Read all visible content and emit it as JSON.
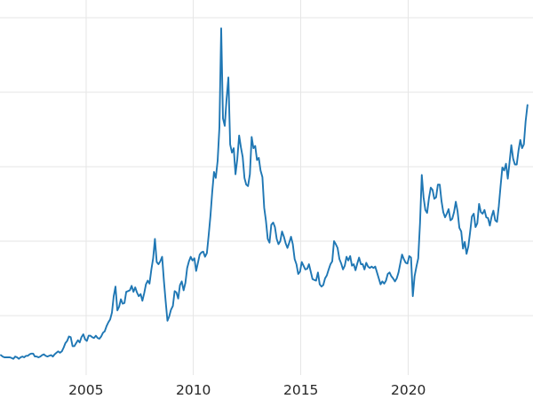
{
  "chart_data": {
    "type": "line",
    "title": "",
    "xlabel": "",
    "ylabel": "",
    "line_color": "#1f77b4",
    "grid_color": "#e6e6e6",
    "tick_label_color": "#262626",
    "background_color": "#ffffff",
    "grid": true,
    "axes": {
      "x_domain": [
        2001.0,
        2025.8
      ],
      "y_domain": [
        -1.2,
        52.4
      ]
    },
    "y_gridlines": [
      10,
      20,
      30,
      40,
      50
    ],
    "x_ticks": [
      {
        "value": 2005,
        "label": "2005"
      },
      {
        "value": 2010,
        "label": "2010"
      },
      {
        "value": 2015,
        "label": "2015"
      },
      {
        "value": 2020,
        "label": "2020"
      }
    ],
    "monthly_values": {
      "2001": [
        4.7,
        4.5,
        4.4,
        4.4,
        4.4,
        4.4,
        4.3,
        4.2,
        4.5,
        4.4,
        4.2,
        4.4
      ],
      "2002": [
        4.5,
        4.4,
        4.6,
        4.6,
        4.8,
        4.9,
        4.9,
        4.5,
        4.5,
        4.4,
        4.5,
        4.7
      ],
      "2003": [
        4.8,
        4.6,
        4.5,
        4.6,
        4.7,
        4.5,
        4.8,
        5.0,
        5.2,
        5.0,
        5.2,
        5.7
      ],
      "2004": [
        6.3,
        6.6,
        7.2,
        7.1,
        5.9,
        5.9,
        6.3,
        6.7,
        6.4,
        7.1,
        7.5,
        6.8
      ],
      "2005": [
        6.6,
        7.3,
        7.3,
        7.1,
        7.0,
        7.3,
        7.0,
        6.9,
        7.2,
        7.7,
        7.9,
        8.6
      ],
      "2006": [
        9.1,
        9.5,
        10.4,
        12.6,
        13.9,
        10.7,
        11.2,
        12.2,
        11.6,
        11.7,
        13.2,
        13.3
      ],
      "2007": [
        13.4,
        14.0,
        13.2,
        13.8,
        13.1,
        12.6,
        12.9,
        12.0,
        13.0,
        14.2,
        14.7,
        14.3
      ],
      "2008": [
        16.2,
        17.7,
        20.3,
        17.2,
        16.9,
        17.3,
        17.9,
        14.7,
        11.9,
        9.3,
        9.9,
        10.8
      ],
      "2009": [
        11.3,
        13.3,
        13.1,
        12.3,
        14.1,
        14.6,
        13.4,
        14.4,
        16.4,
        17.3,
        17.9,
        17.4
      ],
      "2010": [
        17.7,
        16.0,
        17.1,
        18.2,
        18.5,
        18.6,
        17.9,
        18.4,
        20.8,
        23.4,
        26.6,
        29.3
      ],
      "2011": [
        28.5,
        30.8,
        35.3,
        48.6,
        36.5,
        35.5,
        39.0,
        42.0,
        33.0,
        31.9,
        32.5,
        29.0
      ],
      "2012": [
        31.0,
        34.2,
        32.6,
        31.3,
        28.5,
        27.6,
        27.4,
        29.0,
        34.0,
        32.5,
        32.8,
        30.9
      ],
      "2013": [
        31.2,
        29.5,
        28.6,
        24.5,
        22.7,
        20.3,
        19.8,
        22.2,
        22.5,
        21.9,
        20.3,
        19.6
      ],
      "2014": [
        20.0,
        21.3,
        20.6,
        19.7,
        19.1,
        19.8,
        20.6,
        19.6,
        17.6,
        16.9,
        15.6,
        15.9
      ],
      "2015": [
        17.2,
        16.7,
        16.2,
        16.3,
        16.9,
        15.9,
        14.9,
        14.8,
        14.7,
        15.8,
        14.2,
        13.9
      ],
      "2016": [
        14.1,
        15.0,
        15.4,
        16.2,
        16.9,
        17.3,
        20.0,
        19.6,
        19.1,
        17.6,
        17.0,
        16.2
      ],
      "2017": [
        16.7,
        17.9,
        17.4,
        18.0,
        16.7,
        16.9,
        16.1,
        17.0,
        17.8,
        16.9,
        16.9,
        16.2
      ],
      "2018": [
        17.1,
        16.6,
        16.4,
        16.6,
        16.4,
        16.6,
        15.8,
        15.0,
        14.2,
        14.6,
        14.3,
        14.7
      ],
      "2019": [
        15.6,
        15.8,
        15.3,
        15.0,
        14.6,
        15.0,
        15.8,
        17.0,
        18.2,
        17.6,
        17.1,
        17.0
      ],
      "2020": [
        18.0,
        17.8,
        12.6,
        15.3,
        16.6,
        17.7,
        22.4,
        28.9,
        25.9,
        24.2,
        23.8,
        25.8
      ],
      "2021": [
        27.2,
        26.9,
        25.7,
        25.9,
        27.6,
        27.6,
        25.4,
        23.9,
        23.2,
        23.7,
        24.3,
        22.8
      ],
      "2022": [
        23.0,
        23.9,
        25.3,
        24.0,
        21.8,
        21.3,
        19.0,
        19.9,
        18.3,
        19.3,
        21.2,
        23.3
      ],
      "2023": [
        23.7,
        21.9,
        22.4,
        25.0,
        23.9,
        23.7,
        24.2,
        23.2,
        23.1,
        22.1,
        23.3,
        24.1
      ],
      "2024": [
        22.8,
        22.6,
        24.7,
        27.4,
        29.9,
        29.5,
        30.4,
        28.4,
        30.6,
        32.9,
        31.1,
        30.3
      ],
      "2025": [
        30.3,
        32.2,
        33.6,
        32.5,
        33.0,
        36.1,
        38.3
      ]
    }
  }
}
